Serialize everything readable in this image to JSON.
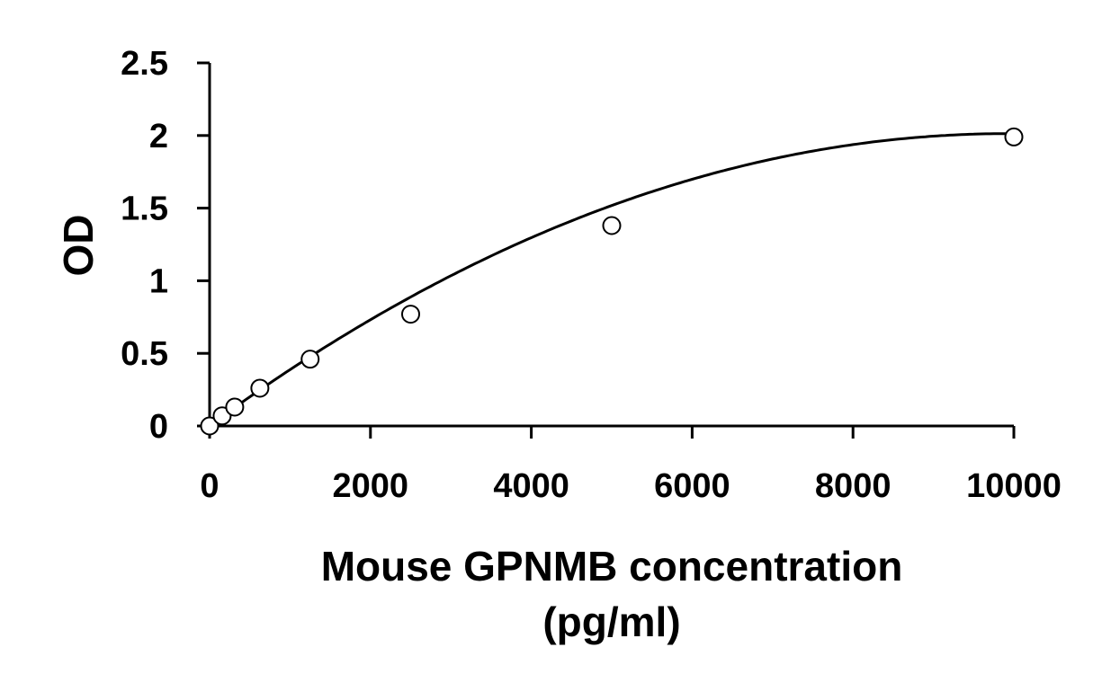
{
  "chart_data": {
    "type": "scatter",
    "title": "",
    "xlabel_lines": [
      "Mouse GPNMB concentration",
      "(pg/ml)"
    ],
    "ylabel": "OD",
    "xlim": [
      0,
      10000
    ],
    "ylim": [
      0,
      2.5
    ],
    "x_ticks": [
      0,
      2000,
      4000,
      6000,
      8000,
      10000
    ],
    "x_tick_labels": [
      "0",
      "2000",
      "4000",
      "6000",
      "8000",
      "10000"
    ],
    "y_ticks": [
      0,
      0.5,
      1,
      1.5,
      2,
      2.5
    ],
    "y_tick_labels": [
      "0",
      "0.5",
      "1",
      "1.5",
      "2",
      "2.5"
    ],
    "grid": false,
    "legend": false,
    "series": [
      {
        "marker": "open-circle",
        "x": [
          0,
          156,
          312,
          625,
          1250,
          2500,
          5000,
          10000
        ],
        "y": [
          0.0,
          0.07,
          0.13,
          0.26,
          0.46,
          0.77,
          1.38,
          1.99
        ]
      }
    ],
    "trendline": {
      "kind": "polynomial",
      "coefficients": [
        0.003,
        0.000405,
        -2.04e-08
      ]
    },
    "colors": {
      "axis": "#000000",
      "marker_fill": "#ffffff",
      "marker_stroke": "#000000",
      "curve": "#000000"
    }
  }
}
